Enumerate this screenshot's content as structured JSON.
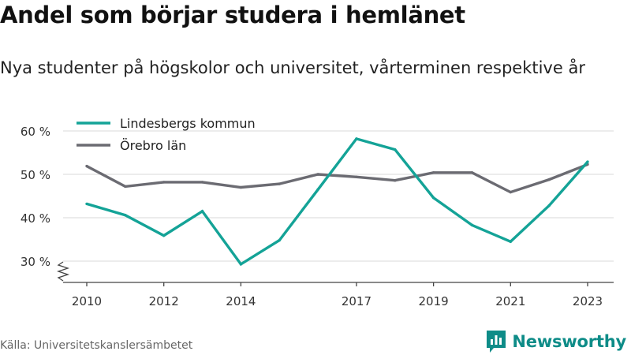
{
  "header": {
    "title": "Andel som börjar studera i hemlänet",
    "subtitle": "Nya studenter på högskolor och universitet, vårterminen respektive år"
  },
  "footer": {
    "source": "Källa: Universitetskanslersämbetet",
    "brand": "Newsworthy",
    "brand_icon": "bar-chart-logo-icon",
    "brand_color": "#0e8c88"
  },
  "chart_data": {
    "type": "line",
    "title": "Andel som börjar studera i hemlänet",
    "subtitle": "Nya studenter på högskolor och universitet, vårterminen respektive år",
    "xlabel": "",
    "ylabel": "",
    "x": [
      2010,
      2011,
      2012,
      2013,
      2014,
      2015,
      2016,
      2017,
      2018,
      2019,
      2020,
      2021,
      2022,
      2023
    ],
    "x_tick_values": [
      2010,
      2012,
      2014,
      2017,
      2019,
      2021,
      2023
    ],
    "x_tick_labels": [
      "2010",
      "2012",
      "2014",
      "2017",
      "2019",
      "2021",
      "2023"
    ],
    "y_ticks": [
      30,
      40,
      50,
      60
    ],
    "y_tick_labels": [
      "30 %",
      "40 %",
      "50 %",
      "60 %"
    ],
    "ylim": [
      25,
      62
    ],
    "y_axis_break": true,
    "grid": true,
    "legend_position": "top-left",
    "series": [
      {
        "name": "Lindesbergs kommun",
        "color": "#14a397",
        "values": [
          43.2,
          40.6,
          35.9,
          41.5,
          29.3,
          34.8,
          46.5,
          58.2,
          55.7,
          44.6,
          38.3,
          34.5,
          42.8,
          52.9
        ]
      },
      {
        "name": "Örebro län",
        "color": "#6b6b72",
        "values": [
          51.9,
          47.2,
          48.2,
          48.2,
          47.0,
          47.8,
          50.0,
          49.4,
          48.6,
          50.4,
          50.4,
          45.9,
          48.8,
          52.3
        ]
      }
    ]
  }
}
